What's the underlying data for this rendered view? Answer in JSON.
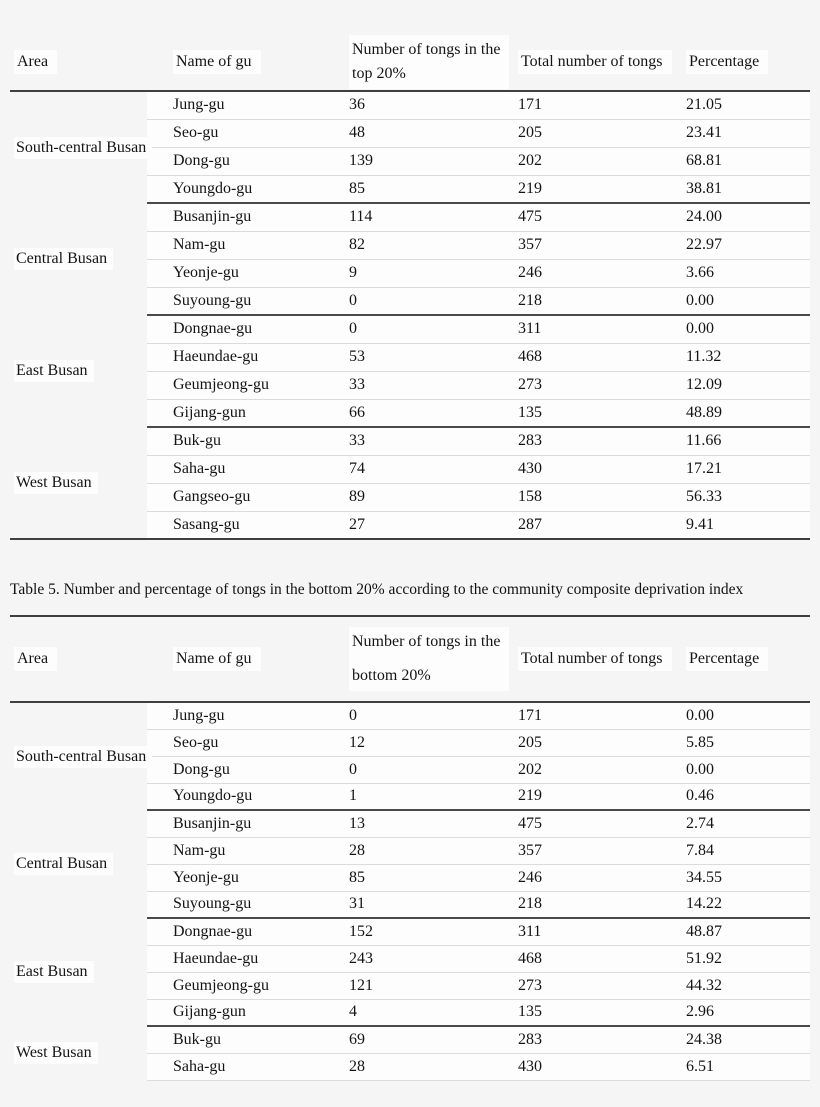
{
  "page": {
    "background": "#f5f5f6",
    "text_color": "#141414",
    "rule_color": "#3f3f3f",
    "group_rule_color": "#4a4a4a",
    "row_background": "#fdfdfd",
    "row_separator_color": "#dcdcdc"
  },
  "caption": {
    "text": "Table 5. Number and percentage of tongs in the bottom 20% according to the community composite deprivation index"
  },
  "table_top": {
    "header": {
      "area": "Area",
      "name": "Name of gu",
      "count_line1": "Number of tongs in the",
      "count_line2": "top 20%",
      "total": "Total number of tongs",
      "percentage": "Percentage"
    },
    "groups": [
      {
        "area": "South-central Busan",
        "rows": [
          {
            "name": "Jung-gu",
            "count": "36",
            "total": "171",
            "pct": "21.05"
          },
          {
            "name": "Seo-gu",
            "count": "48",
            "total": "205",
            "pct": "23.41"
          },
          {
            "name": "Dong-gu",
            "count": "139",
            "total": "202",
            "pct": "68.81"
          },
          {
            "name": "Youngdo-gu",
            "count": "85",
            "total": "219",
            "pct": "38.81"
          }
        ]
      },
      {
        "area": "Central Busan",
        "rows": [
          {
            "name": "Busanjin-gu",
            "count": "114",
            "total": "475",
            "pct": "24.00"
          },
          {
            "name": "Nam-gu",
            "count": "82",
            "total": "357",
            "pct": "22.97"
          },
          {
            "name": "Yeonje-gu",
            "count": "9",
            "total": "246",
            "pct": "3.66"
          },
          {
            "name": "Suyoung-gu",
            "count": "0",
            "total": "218",
            "pct": "0.00"
          }
        ]
      },
      {
        "area": "East Busan",
        "rows": [
          {
            "name": "Dongnae-gu",
            "count": "0",
            "total": "311",
            "pct": "0.00"
          },
          {
            "name": "Haeundae-gu",
            "count": "53",
            "total": "468",
            "pct": "11.32"
          },
          {
            "name": "Geumjeong-gu",
            "count": "33",
            "total": "273",
            "pct": "12.09"
          },
          {
            "name": "Gijang-gun",
            "count": "66",
            "total": "135",
            "pct": "48.89"
          }
        ]
      },
      {
        "area": "West Busan",
        "rows": [
          {
            "name": "Buk-gu",
            "count": "33",
            "total": "283",
            "pct": "11.66"
          },
          {
            "name": "Saha-gu",
            "count": "74",
            "total": "430",
            "pct": "17.21"
          },
          {
            "name": "Gangseo-gu",
            "count": "89",
            "total": "158",
            "pct": "56.33"
          },
          {
            "name": "Sasang-gu",
            "count": "27",
            "total": "287",
            "pct": "9.41"
          }
        ]
      }
    ]
  },
  "table_bottom": {
    "header": {
      "area": "Area",
      "name": "Name of gu",
      "count_line1": "Number of tongs in the",
      "count_line2": "bottom 20%",
      "total": "Total number of tongs",
      "percentage": "Percentage"
    },
    "groups": [
      {
        "area": "South-central Busan",
        "rows": [
          {
            "name": "Jung-gu",
            "count": "0",
            "total": "171",
            "pct": "0.00"
          },
          {
            "name": "Seo-gu",
            "count": "12",
            "total": "205",
            "pct": "5.85"
          },
          {
            "name": "Dong-gu",
            "count": "0",
            "total": "202",
            "pct": "0.00"
          },
          {
            "name": "Youngdo-gu",
            "count": "1",
            "total": "219",
            "pct": "0.46"
          }
        ]
      },
      {
        "area": "Central Busan",
        "rows": [
          {
            "name": "Busanjin-gu",
            "count": "13",
            "total": "475",
            "pct": "2.74"
          },
          {
            "name": "Nam-gu",
            "count": "28",
            "total": "357",
            "pct": "7.84"
          },
          {
            "name": "Yeonje-gu",
            "count": "85",
            "total": "246",
            "pct": "34.55"
          },
          {
            "name": "Suyoung-gu",
            "count": "31",
            "total": "218",
            "pct": "14.22"
          }
        ]
      },
      {
        "area": "East Busan",
        "rows": [
          {
            "name": "Dongnae-gu",
            "count": "152",
            "total": "311",
            "pct": "48.87"
          },
          {
            "name": "Haeundae-gu",
            "count": "243",
            "total": "468",
            "pct": "51.92"
          },
          {
            "name": "Geumjeong-gu",
            "count": "121",
            "total": "273",
            "pct": "44.32"
          },
          {
            "name": "Gijang-gun",
            "count": "4",
            "total": "135",
            "pct": "2.96"
          }
        ]
      },
      {
        "area": "West Busan",
        "rows": [
          {
            "name": "Buk-gu",
            "count": "69",
            "total": "283",
            "pct": "24.38"
          },
          {
            "name": "Saha-gu",
            "count": "28",
            "total": "430",
            "pct": "6.51"
          }
        ]
      }
    ]
  }
}
